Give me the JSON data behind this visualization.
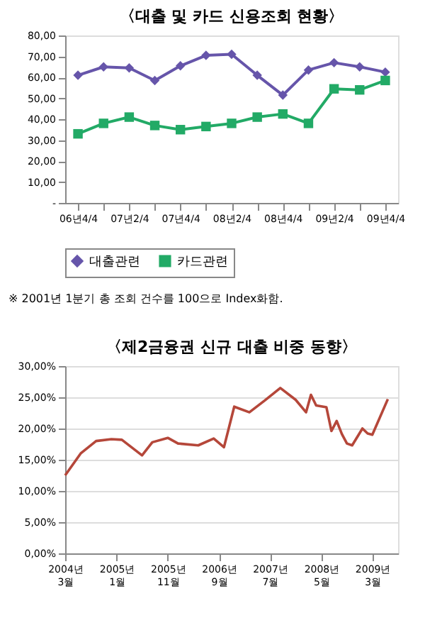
{
  "chart_data": [
    {
      "type": "line",
      "title": "〈대출 및 카드 신용조회 현황〉",
      "categories": [
        "06년4/4",
        null,
        "07년2/4",
        null,
        "07년4/4",
        null,
        "08년2/4",
        null,
        "08년4/4",
        null,
        "09년2/4",
        null,
        "09년4/4"
      ],
      "series": [
        {
          "name": "대출관련",
          "color": "#6655aa",
          "marker": "diamond",
          "values": [
            61,
            65,
            64.5,
            58.5,
            65.5,
            70.5,
            71,
            61,
            51.5,
            63.5,
            67,
            65,
            62.5
          ]
        },
        {
          "name": "카드관련",
          "color": "#22aa66",
          "marker": "square",
          "values": [
            33,
            38,
            41,
            37,
            35,
            36.5,
            38,
            41,
            42.5,
            38,
            54.5,
            54,
            58.5
          ]
        }
      ],
      "ylim": [
        0,
        80
      ],
      "yticks": [
        {
          "value": 0,
          "label": "-"
        },
        {
          "value": 10,
          "label": "10,00"
        },
        {
          "value": 20,
          "label": "20,00"
        },
        {
          "value": 30,
          "label": "30,00"
        },
        {
          "value": 40,
          "label": "40,00"
        },
        {
          "value": 50,
          "label": "50,00"
        },
        {
          "value": 60,
          "label": "60,00"
        },
        {
          "value": 70,
          "label": "70,00"
        },
        {
          "value": 80,
          "label": "80,00"
        }
      ],
      "grid": false,
      "legend": "bottom",
      "line_style": "solid",
      "annotations": [
        "※ 2001년 1분기 총 조회 건수를 100으로 Index화함."
      ]
    },
    {
      "type": "line",
      "title": "〈제2금융권 신규 대출 비중 동향〉",
      "x": [
        "2004-03",
        "2004-06",
        "2004-09",
        "2004-12",
        "2005-02",
        "2005-06",
        "2005-08",
        "2005-11",
        "2006-01",
        "2006-05",
        "2006-08",
        "2006-10",
        "2006-12",
        "2007-03",
        "2007-06",
        "2007-09",
        "2007-12",
        "2008-02",
        "2008-03",
        "2008-04",
        "2008-06",
        "2008-07",
        "2008-08",
        "2008-09",
        "2008-10",
        "2008-11",
        "2009-01",
        "2009-02",
        "2009-03",
        "2009-06"
      ],
      "series": [
        {
          "color": "#b5473a",
          "values": [
            12.5,
            16,
            18,
            18.3,
            18.2,
            15.7,
            17.8,
            18.5,
            17.6,
            17.3,
            18.4,
            17,
            23.5,
            22.6,
            24.5,
            26.5,
            24.6,
            22.6,
            25.4,
            23.7,
            23.4,
            19.6,
            21.2,
            19.1,
            17.6,
            17.3,
            20,
            19.2,
            19,
            24.7
          ]
        }
      ],
      "xlim": [
        "2004-03",
        "2009-08"
      ],
      "xticks": [
        {
          "value": "2004-03",
          "label": "2004년 3월"
        },
        {
          "value": "2005-01",
          "label": "2005년 1월"
        },
        {
          "value": "2005-11",
          "label": "2005년 11월"
        },
        {
          "value": "2006-09",
          "label": "2006년 9월"
        },
        {
          "value": "2007-07",
          "label": "2007년 7월"
        },
        {
          "value": "2008-05",
          "label": "2008년 5월"
        },
        {
          "value": "2009-03",
          "label": "2009년 3월"
        }
      ],
      "ylim": [
        0,
        30
      ],
      "yticks": [
        {
          "value": 0,
          "label": "0,00%"
        },
        {
          "value": 5,
          "label": "5,00%"
        },
        {
          "value": 10,
          "label": "10,00%"
        },
        {
          "value": 15,
          "label": "15,00%"
        },
        {
          "value": 20,
          "label": "20,00%"
        },
        {
          "value": 25,
          "label": "25,00%"
        },
        {
          "value": 30,
          "label": "30,00%"
        }
      ],
      "grid": "y",
      "marker": "none",
      "line_style": "solid"
    }
  ]
}
